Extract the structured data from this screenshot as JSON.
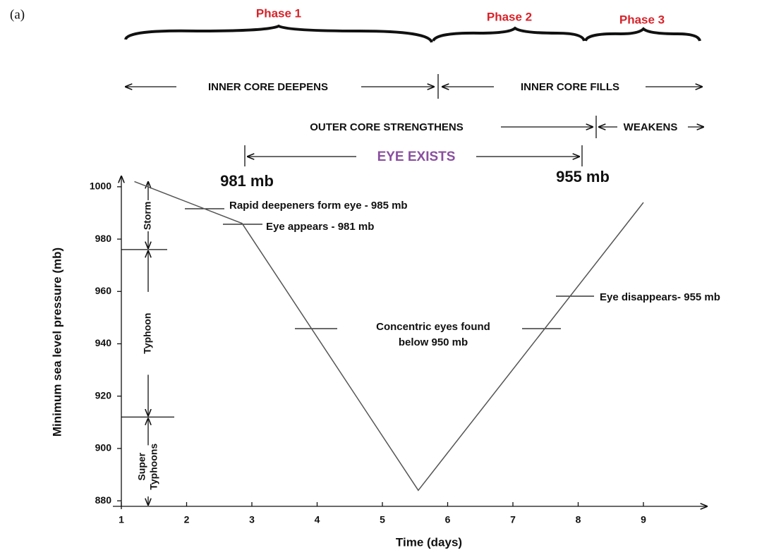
{
  "chart_data": {
    "type": "line",
    "panel_label": "(a)",
    "phases": [
      "Phase 1",
      "Phase 2",
      "Phase 3"
    ],
    "stages": {
      "inner_deepens": "INNER CORE DEEPENS",
      "inner_fills": "INNER CORE FILLS",
      "outer_strengthens": "OUTER CORE STRENGTHENS",
      "weakens": "WEAKENS",
      "eye_exists": "EYE EXISTS",
      "eye_start": "981 mb",
      "eye_end": "955 mb"
    },
    "annotations": {
      "rapid": "Rapid deepeners form eye - 985 mb",
      "appears": "Eye appears - 981 mb",
      "concentric_1": "Concentric eyes found",
      "concentric_2": "below 950 mb",
      "disappears": "Eye disappears- 955 mb"
    },
    "bands": {
      "storm": "Storm",
      "typhoon": "Typhoon",
      "super_1": "Super",
      "super_2": "Typhoons",
      "boundaries": [
        976,
        912
      ]
    },
    "xlabel": "Time (days)",
    "ylabel": "Minimum sea level pressure (mb)",
    "x": [
      1.2,
      2.85,
      5.55,
      9.0
    ],
    "values": [
      1002,
      986,
      884,
      994
    ],
    "color": "#555555",
    "xlim": [
      1,
      9.95
    ],
    "ylim": [
      876,
      1004
    ],
    "xticks": [
      1,
      2,
      3,
      4,
      5,
      6,
      7,
      8,
      9
    ],
    "yticks": [
      880,
      900,
      920,
      940,
      960,
      980,
      1000
    ]
  }
}
